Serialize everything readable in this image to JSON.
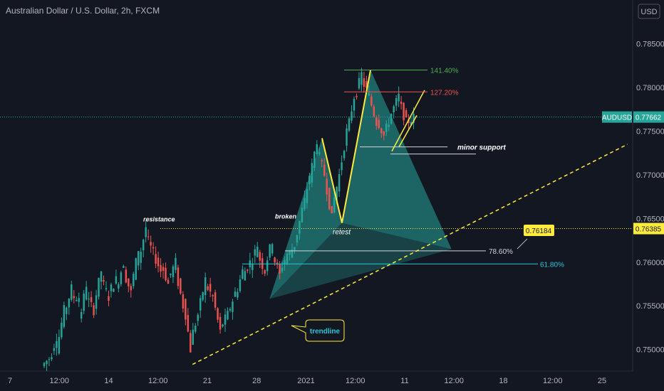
{
  "header": {
    "title": "Australian Dollar / U.S. Dollar, 2h, FXCM",
    "currency": "USD"
  },
  "colors": {
    "bg": "#131722",
    "up": "#26a69a",
    "down": "#ef5350",
    "harmonic_fill": "#26a69a",
    "leg": "#ffeb3b",
    "fib_141": "#4caf50",
    "fib_127": "#ef5350",
    "fib_786": "#d1d4dc",
    "fib_618": "#26c6da",
    "trendline": "#ffeb3b",
    "current_price": "#26a69a",
    "resistance": "#ffeb3b"
  },
  "chart_data": {
    "type": "candlestick",
    "ylim": [
      0.7481,
      0.7888
    ],
    "y_ticks": [
      "0.78500",
      "0.78000",
      "0.77500",
      "0.77000",
      "0.76500",
      "0.76000",
      "0.75500",
      "0.75000"
    ],
    "x_ticks": [
      "7",
      "12:00",
      "14",
      "12:00",
      "21",
      "28",
      "2021",
      "12:00",
      "11",
      "12:00",
      "18",
      "12:00",
      "25"
    ],
    "price_path": [
      [
        0.7481,
        0.749
      ],
      [
        0.7487,
        0.7515
      ],
      [
        0.75,
        0.7545
      ],
      [
        0.754,
        0.757
      ],
      [
        0.756,
        0.756
      ],
      [
        0.753,
        0.7575
      ],
      [
        0.756,
        0.7545
      ],
      [
        0.755,
        0.759
      ],
      [
        0.758,
        0.756
      ],
      [
        0.7565,
        0.758
      ],
      [
        0.757,
        0.76
      ],
      [
        0.759,
        0.7565
      ],
      [
        0.757,
        0.7615
      ],
      [
        0.76,
        0.764
      ],
      [
        0.763,
        0.761
      ],
      [
        0.761,
        0.759
      ],
      [
        0.76,
        0.7575
      ],
      [
        0.758,
        0.76
      ],
      [
        0.759,
        0.755
      ],
      [
        0.756,
        0.75
      ],
      [
        0.751,
        0.754
      ],
      [
        0.754,
        0.758
      ],
      [
        0.7575,
        0.756
      ],
      [
        0.756,
        0.752
      ],
      [
        0.7525,
        0.754
      ],
      [
        0.754,
        0.7565
      ],
      [
        0.756,
        0.759
      ],
      [
        0.7585,
        0.76
      ],
      [
        0.7595,
        0.762
      ],
      [
        0.761,
        0.759
      ],
      [
        0.7595,
        0.7625
      ],
      [
        0.761,
        0.7585
      ],
      [
        0.759,
        0.761
      ],
      [
        0.7605,
        0.762
      ],
      [
        0.762,
        0.766
      ],
      [
        0.7655,
        0.77
      ],
      [
        0.7695,
        0.774
      ],
      [
        0.773,
        0.77
      ],
      [
        0.77,
        0.765
      ],
      [
        0.766,
        0.77
      ],
      [
        0.77,
        0.775
      ],
      [
        0.7745,
        0.779
      ],
      [
        0.7785,
        0.7815
      ],
      [
        0.781,
        0.779
      ],
      [
        0.779,
        0.776
      ],
      [
        0.7765,
        0.7745
      ],
      [
        0.7745,
        0.777
      ],
      [
        0.777,
        0.779
      ],
      [
        0.7785,
        0.776
      ],
      [
        0.776,
        0.7766
      ]
    ],
    "current_price": {
      "label": "AUDUSD",
      "value": "0.77662"
    },
    "resistance_line": {
      "label": "resistance",
      "value": "0.76385"
    },
    "fib_levels": [
      {
        "label": "141.40%",
        "value": 0.782
      },
      {
        "label": "127.20%",
        "value": 0.7795
      },
      {
        "label": "78.60%",
        "value": 0.7613
      },
      {
        "label": "61.80%",
        "value": 0.7598
      }
    ],
    "harmonic_points": [
      {
        "x": 0.406,
        "y": 0.7558
      },
      {
        "x": 0.485,
        "y": 0.7742
      },
      {
        "x": 0.515,
        "y": 0.7645
      },
      {
        "x": 0.558,
        "y": 0.782
      },
      {
        "x": 0.68,
        "y": 0.7615
      }
    ],
    "annotations": {
      "resistance": "resistance",
      "broken": "broken",
      "retest": "retest",
      "minor_support": "minor support",
      "trendline": "trendline",
      "callout_price": "0.76184"
    },
    "minor_support_value": 0.7732,
    "trendline": [
      {
        "x": 0.29,
        "y": 0.7483
      },
      {
        "x": 0.945,
        "y": 0.7735
      }
    ]
  }
}
